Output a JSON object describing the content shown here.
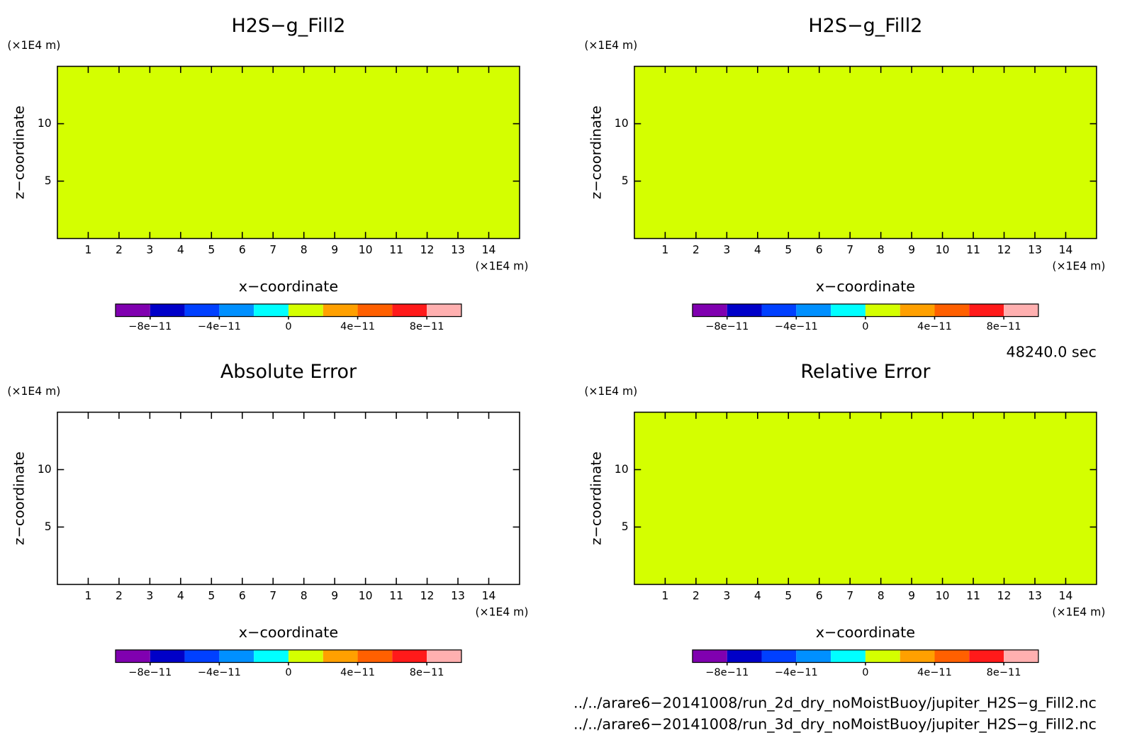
{
  "chart_data": [
    {
      "type": "contour",
      "title": "H2S−g_Fill2",
      "x_label": "x−coordinate",
      "y_label": "z−coordinate",
      "x_unit": "(×1E4 m)",
      "y_unit": "(×1E4 m)",
      "xlim": [
        0,
        15
      ],
      "xticks": [
        1,
        2,
        3,
        4,
        5,
        6,
        7,
        8,
        9,
        10,
        11,
        12,
        13,
        14
      ],
      "ylim": [
        0,
        15
      ],
      "yticks": [
        5,
        10
      ],
      "fill": "#d4ff00",
      "colorbar": {
        "lim": [
          -1e-10,
          1e-10
        ],
        "colors": [
          "#8000b0",
          "#0000c8",
          "#0040ff",
          "#0090ff",
          "#00ffff",
          "#d4ff00",
          "#ffa000",
          "#ff6000",
          "#ff1a1a",
          "#ffb0b0"
        ],
        "ticks": [
          {
            "value": -8e-11,
            "label": "−8e−11"
          },
          {
            "value": -4e-11,
            "label": "−4e−11"
          },
          0,
          {
            "value": 4e-11,
            "label": "4e−11"
          },
          {
            "value": 8e-11,
            "label": "8e−11"
          }
        ]
      }
    },
    {
      "type": "contour",
      "title": "H2S−g_Fill2",
      "x_label": "x−coordinate",
      "y_label": "z−coordinate",
      "x_unit": "(×1E4 m)",
      "y_unit": "(×1E4 m)",
      "xlim": [
        0,
        15
      ],
      "xticks": [
        1,
        2,
        3,
        4,
        5,
        6,
        7,
        8,
        9,
        10,
        11,
        12,
        13,
        14
      ],
      "ylim": [
        0,
        15
      ],
      "yticks": [
        5,
        10
      ],
      "fill": "#d4ff00",
      "colorbar": {
        "lim": [
          -1e-10,
          1e-10
        ],
        "colors": [
          "#8000b0",
          "#0000c8",
          "#0040ff",
          "#0090ff",
          "#00ffff",
          "#d4ff00",
          "#ffa000",
          "#ff6000",
          "#ff1a1a",
          "#ffb0b0"
        ],
        "ticks": [
          {
            "value": -8e-11,
            "label": "−8e−11"
          },
          {
            "value": -4e-11,
            "label": "−4e−11"
          },
          0,
          {
            "value": 4e-11,
            "label": "4e−11"
          },
          {
            "value": 8e-11,
            "label": "8e−11"
          }
        ]
      }
    },
    {
      "type": "contour",
      "title": "Absolute Error",
      "x_label": "x−coordinate",
      "y_label": "z−coordinate",
      "x_unit": "(×1E4 m)",
      "y_unit": "(×1E4 m)",
      "xlim": [
        0,
        15
      ],
      "xticks": [
        1,
        2,
        3,
        4,
        5,
        6,
        7,
        8,
        9,
        10,
        11,
        12,
        13,
        14
      ],
      "ylim": [
        0,
        15
      ],
      "yticks": [
        5,
        10
      ],
      "colorbar": {
        "lim": [
          -1e-10,
          1e-10
        ],
        "colors": [
          "#8000b0",
          "#0000c8",
          "#0040ff",
          "#0090ff",
          "#00ffff",
          "#d4ff00",
          "#ffa000",
          "#ff6000",
          "#ff1a1a",
          "#ffb0b0"
        ],
        "ticks": [
          {
            "value": -8e-11,
            "label": "−8e−11"
          },
          {
            "value": -4e-11,
            "label": "−4e−11"
          },
          0,
          {
            "value": 4e-11,
            "label": "4e−11"
          },
          {
            "value": 8e-11,
            "label": "8e−11"
          }
        ]
      }
    },
    {
      "type": "contour",
      "title": "Relative Error",
      "x_label": "x−coordinate",
      "y_label": "z−coordinate",
      "x_unit": "(×1E4 m)",
      "y_unit": "(×1E4 m)",
      "xlim": [
        0,
        15
      ],
      "xticks": [
        1,
        2,
        3,
        4,
        5,
        6,
        7,
        8,
        9,
        10,
        11,
        12,
        13,
        14
      ],
      "ylim": [
        0,
        15
      ],
      "yticks": [
        5,
        10
      ],
      "fill": "#d4ff00",
      "colorbar": {
        "lim": [
          -1e-10,
          1e-10
        ],
        "colors": [
          "#8000b0",
          "#0000c8",
          "#0040ff",
          "#0090ff",
          "#00ffff",
          "#d4ff00",
          "#ffa000",
          "#ff6000",
          "#ff1a1a",
          "#ffb0b0"
        ],
        "ticks": [
          {
            "value": -8e-11,
            "label": "−8e−11"
          },
          {
            "value": -4e-11,
            "label": "−4e−11"
          },
          0,
          {
            "value": 4e-11,
            "label": "4e−11"
          },
          {
            "value": 8e-11,
            "label": "8e−11"
          }
        ]
      }
    }
  ],
  "time_label": "48240.0 sec",
  "files": [
    "../../arare6−20141008/run_2d_dry_noMoistBuoy/jupiter_H2S−g_Fill2.nc",
    "../../arare6−20141008/run_3d_dry_noMoistBuoy/jupiter_H2S−g_Fill2.nc"
  ]
}
